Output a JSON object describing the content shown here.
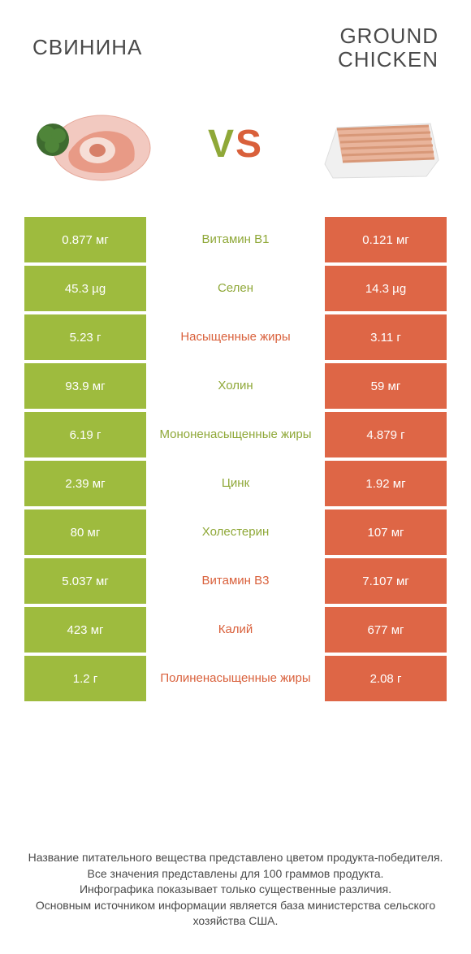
{
  "colors": {
    "left_bg": "#9ebb3e",
    "right_bg": "#de6646",
    "left_text": "#8fa838",
    "right_text": "#d9603b",
    "neutral_text": "#4a4a4a"
  },
  "header": {
    "left_title": "СВИНИНА",
    "right_title": "GROUND\nCHICKEN",
    "vs_v": "V",
    "vs_s": "S"
  },
  "rows": [
    {
      "left": "0.877 мг",
      "mid": "Витамин B1",
      "right": "0.121 мг",
      "winner": "left"
    },
    {
      "left": "45.3 µg",
      "mid": "Селен",
      "right": "14.3 µg",
      "winner": "left"
    },
    {
      "left": "5.23 г",
      "mid": "Насыщенные жиры",
      "right": "3.11 г",
      "winner": "right"
    },
    {
      "left": "93.9 мг",
      "mid": "Холин",
      "right": "59 мг",
      "winner": "left"
    },
    {
      "left": "6.19 г",
      "mid": "Мононенасыщенные жиры",
      "right": "4.879 г",
      "winner": "left"
    },
    {
      "left": "2.39 мг",
      "mid": "Цинк",
      "right": "1.92 мг",
      "winner": "left"
    },
    {
      "left": "80 мг",
      "mid": "Холестерин",
      "right": "107 мг",
      "winner": "left"
    },
    {
      "left": "5.037 мг",
      "mid": "Витамин B3",
      "right": "7.107 мг",
      "winner": "right"
    },
    {
      "left": "423 мг",
      "mid": "Калий",
      "right": "677 мг",
      "winner": "right"
    },
    {
      "left": "1.2 г",
      "mid": "Полиненасыщенные жиры",
      "right": "2.08 г",
      "winner": "right"
    }
  ],
  "footer": {
    "line1": "Название питательного вещества представлено цветом продукта-победителя.",
    "line2": "Все значения представлены для 100 граммов продукта.",
    "line3": "Инфографика показывает только существенные различия.",
    "line4": "Основным источником информации является база министерства сельского хозяйства США."
  }
}
